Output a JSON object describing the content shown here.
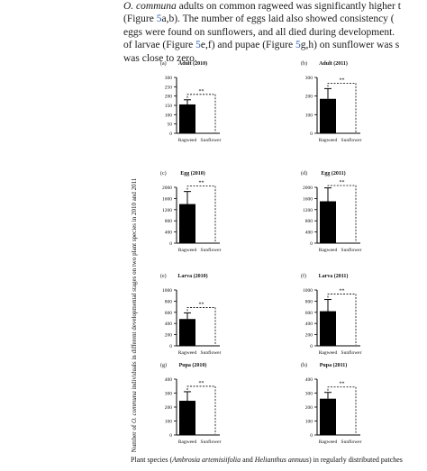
{
  "body_text": {
    "line1_italic": "O. communa",
    "line1_rest": " adults on common ragweed was significantly higher t",
    "line2_pre": "(Figure ",
    "line2_link": "5",
    "line2_post": "a,b). The number of eggs laid also showed consistency (",
    "line3": "eggs were found on sunflowers, and all died during development.",
    "line4_pre": "of larvae (Figure ",
    "line4_link1": "5",
    "line4_mid": "e,f) and pupae (Figure ",
    "line4_link2": "5",
    "line4_post": "g,h) on sunflower was s",
    "line5": "was close to zero."
  },
  "figure": {
    "y_axis_title_parts": [
      "Number of ",
      "O. communa",
      " individuals in different developmental stages on two plant species in 2010 and 2011"
    ],
    "caption_parts": [
      "Plant species (",
      "Ambrosia artemisiifolia",
      " and ",
      "Helianthus annuus",
      ") in regularly distributed patches"
    ],
    "significance": "**",
    "colors": {
      "bar": "#000000",
      "axis": "#000000",
      "bracket": "#000000"
    }
  },
  "chart_data": [
    {
      "type": "bar",
      "label": "(a)",
      "title": "Adult (2010)",
      "categories": [
        "Ragweed",
        "Sunflower"
      ],
      "values": [
        155,
        0
      ],
      "errors": [
        25,
        0
      ],
      "ylim": [
        0,
        300
      ],
      "yticks": [
        0,
        50,
        100,
        150,
        200,
        250,
        300
      ]
    },
    {
      "type": "bar",
      "label": "(b)",
      "title": "Adult (2011)",
      "categories": [
        "Ragweed",
        "Sunflower"
      ],
      "values": [
        185,
        0
      ],
      "errors": [
        55,
        0
      ],
      "ylim": [
        0,
        300
      ],
      "yticks": [
        0,
        100,
        200,
        300
      ]
    },
    {
      "type": "bar",
      "label": "(c)",
      "title": "Egg (2010)",
      "categories": [
        "Ragweed",
        "Sunflower"
      ],
      "values": [
        1400,
        0
      ],
      "errors": [
        450,
        0
      ],
      "ylim": [
        0,
        2000
      ],
      "yticks": [
        0,
        400,
        800,
        1200,
        1600,
        2000
      ]
    },
    {
      "type": "bar",
      "label": "(d)",
      "title": "Egg (2011)",
      "categories": [
        "Ragweed",
        "Sunflower"
      ],
      "values": [
        1500,
        0
      ],
      "errors": [
        480,
        0
      ],
      "ylim": [
        0,
        2000
      ],
      "yticks": [
        0,
        400,
        800,
        1200,
        1600,
        2000
      ]
    },
    {
      "type": "bar",
      "label": "(e)",
      "title": "Larva (2010)",
      "categories": [
        "Ragweed",
        "Sunflower"
      ],
      "values": [
        480,
        0
      ],
      "errors": [
        110,
        0
      ],
      "ylim": [
        0,
        1000
      ],
      "yticks": [
        0,
        200,
        400,
        600,
        800,
        1000
      ]
    },
    {
      "type": "bar",
      "label": "(f)",
      "title": "Larva (2011)",
      "categories": [
        "Ragweed",
        "Sunflower"
      ],
      "values": [
        620,
        0
      ],
      "errors": [
        210,
        0
      ],
      "ylim": [
        0,
        1000
      ],
      "yticks": [
        0,
        200,
        400,
        600,
        800,
        1000
      ]
    },
    {
      "type": "bar",
      "label": "(g)",
      "title": "Pupa (2010)",
      "categories": [
        "Ragweed",
        "Sunflower"
      ],
      "values": [
        245,
        0
      ],
      "errors": [
        65,
        0
      ],
      "ylim": [
        0,
        400
      ],
      "yticks": [
        0,
        100,
        200,
        300,
        400
      ]
    },
    {
      "type": "bar",
      "label": "(h)",
      "title": "Pupa (2011)",
      "categories": [
        "Ragweed",
        "Sunflower"
      ],
      "values": [
        260,
        0
      ],
      "errors": [
        45,
        0
      ],
      "ylim": [
        0,
        400
      ],
      "yticks": [
        0,
        100,
        200,
        300,
        400
      ]
    }
  ]
}
